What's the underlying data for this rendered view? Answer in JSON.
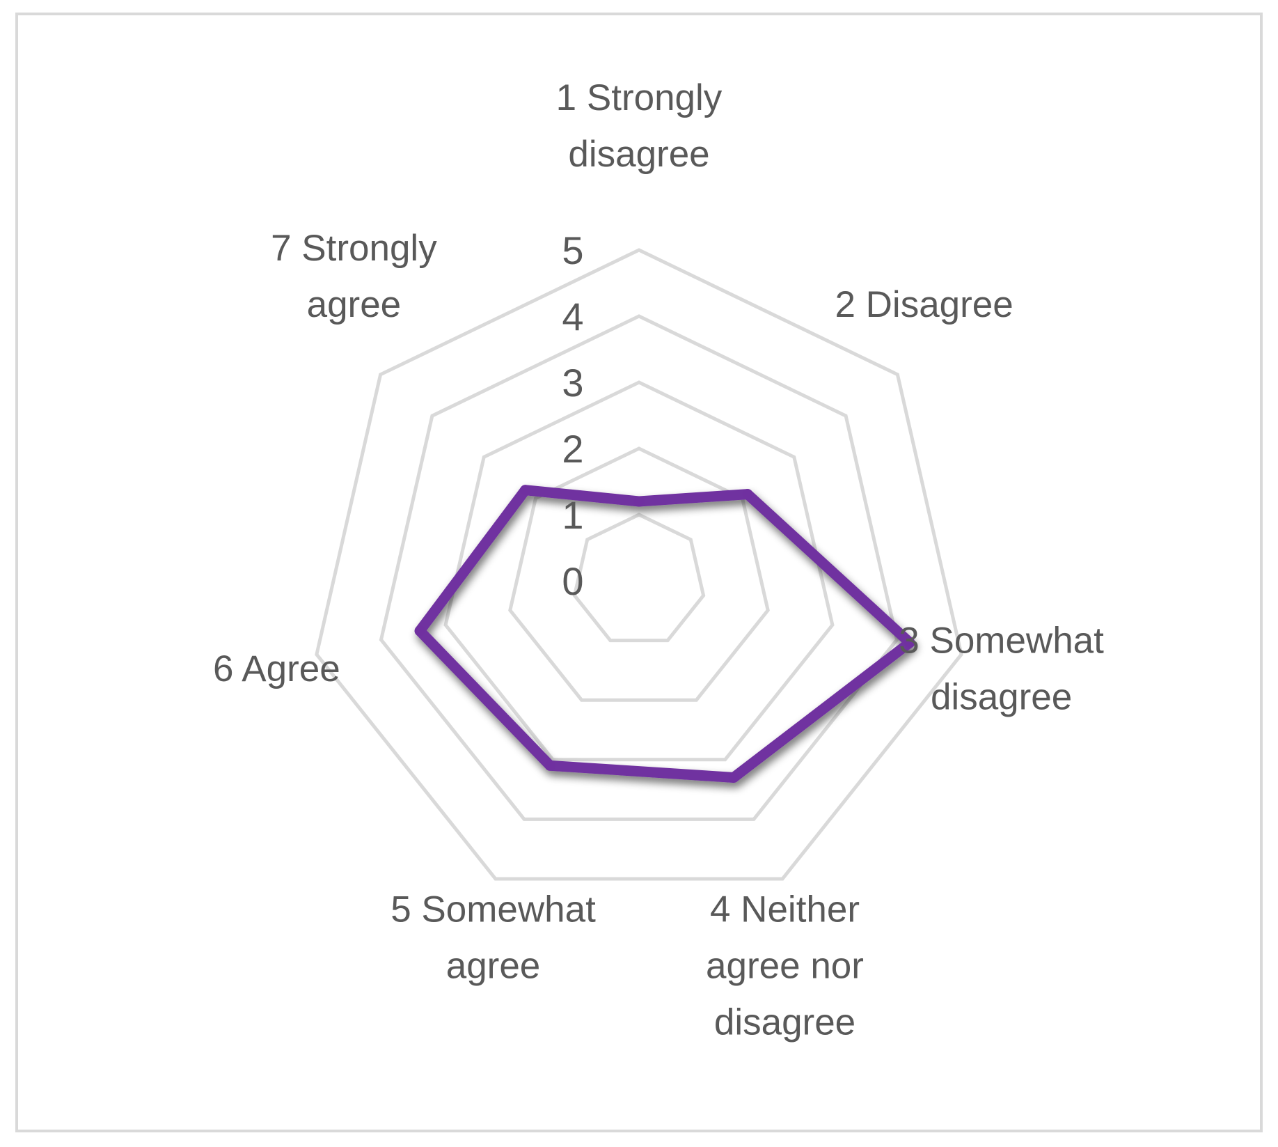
{
  "chart_data": {
    "type": "radar",
    "categories": [
      [
        "1 Strongly",
        "disagree"
      ],
      [
        "2 Disagree"
      ],
      [
        "3 Somewhat",
        "disagree"
      ],
      [
        "4 Neither",
        "agree nor",
        "disagree"
      ],
      [
        "5 Somewhat",
        "agree"
      ],
      [
        "6 Agree"
      ],
      [
        "7 Strongly",
        "agree"
      ]
    ],
    "series": [
      {
        "values": [
          1.2,
          2.1,
          4.2,
          3.3,
          3.1,
          3.4,
          2.2
        ],
        "color": "#7030A0"
      }
    ],
    "radial_ticks": [
      "0",
      "1",
      "2",
      "3",
      "4",
      "5"
    ],
    "rmin": 0,
    "rmax": 5,
    "grid": true,
    "legend": "none",
    "colors": {
      "grid": "#d9d9d9",
      "text": "#595959",
      "series": "#7030A0",
      "frame": "#d9d9d9"
    }
  }
}
